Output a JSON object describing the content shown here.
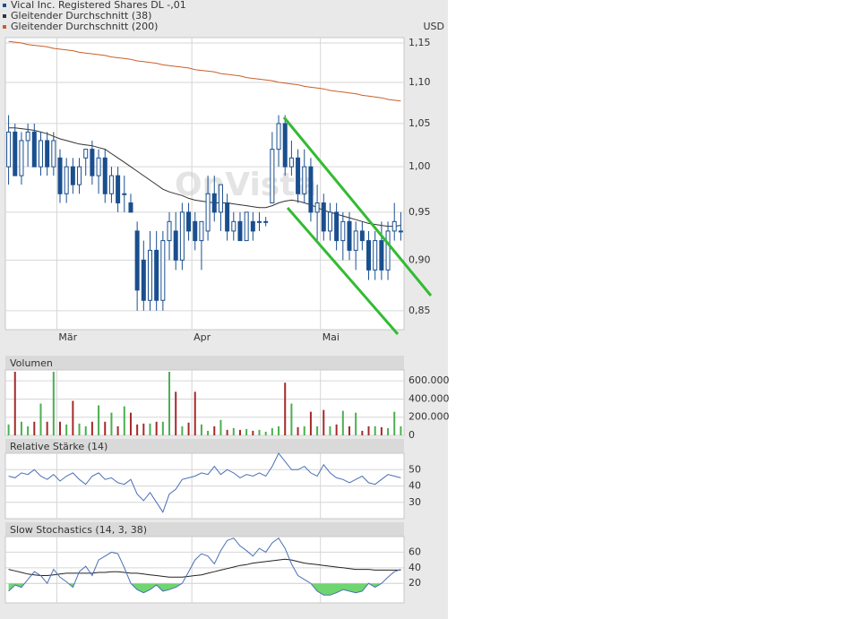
{
  "chart_data": [
    {
      "type": "candlestick",
      "name": "Vical Inc. Registered Shares DL -,01",
      "color": "#1a4f8f",
      "unit": "USD",
      "watermark": "OnVista",
      "log": true,
      "grid": true,
      "categories": [
        null,
        null,
        null,
        null,
        null,
        null,
        null,
        null,
        "Mär",
        null,
        null,
        null,
        null,
        null,
        null,
        null,
        null,
        null,
        null,
        null,
        null,
        null,
        null,
        null,
        null,
        null,
        null,
        null,
        null,
        "Apr",
        null,
        null,
        null,
        null,
        null,
        null,
        null,
        null,
        null,
        null,
        null,
        null,
        null,
        null,
        null,
        null,
        null,
        null,
        null,
        "Mai",
        null,
        null,
        null,
        null,
        null,
        null,
        null,
        null,
        null,
        null,
        null,
        null
      ],
      "open": [
        1.0,
        1.04,
        0.99,
        1.03,
        1.04,
        1.0,
        1.03,
        1.0,
        1.01,
        0.97,
        1.0,
        0.98,
        1.01,
        1.02,
        0.99,
        1.01,
        0.97,
        0.99,
        0.97,
        0.96,
        0.93,
        0.9,
        0.86,
        0.91,
        0.86,
        0.92,
        0.93,
        0.9,
        0.95,
        0.94,
        0.92,
        0.93,
        0.97,
        0.95,
        0.96,
        0.93,
        0.94,
        0.92,
        0.94,
        0.94,
        0.94,
        0.96,
        1.02,
        1.05,
        1.0,
        1.01,
        0.97,
        1.0,
        0.95,
        0.96,
        0.93,
        0.95,
        0.92,
        0.94,
        0.91,
        0.93,
        0.92,
        0.89,
        0.92,
        0.89,
        0.93,
        0.93
      ],
      "high": [
        1.06,
        1.05,
        1.04,
        1.05,
        1.05,
        1.04,
        1.04,
        1.04,
        1.02,
        1.01,
        1.01,
        1.01,
        1.02,
        1.03,
        1.02,
        1.02,
        1.0,
        1.0,
        0.99,
        0.97,
        0.94,
        0.92,
        0.93,
        0.93,
        0.93,
        0.95,
        0.95,
        0.96,
        0.96,
        0.95,
        0.94,
        0.99,
        0.99,
        0.98,
        0.97,
        0.95,
        0.95,
        0.95,
        0.95,
        0.95,
        0.945,
        1.04,
        1.06,
        1.06,
        1.03,
        1.02,
        1.02,
        1.01,
        0.98,
        0.97,
        0.96,
        0.96,
        0.95,
        0.95,
        0.94,
        0.94,
        0.93,
        0.93,
        0.94,
        0.94,
        0.96,
        0.95
      ],
      "low": [
        0.98,
        0.99,
        0.98,
        1.0,
        1.0,
        0.99,
        0.99,
        0.99,
        0.96,
        0.96,
        0.97,
        0.97,
        0.99,
        0.98,
        0.97,
        0.96,
        0.96,
        0.95,
        0.95,
        0.95,
        0.85,
        0.85,
        0.85,
        0.85,
        0.85,
        0.9,
        0.89,
        0.89,
        0.92,
        0.91,
        0.89,
        0.92,
        0.94,
        0.93,
        0.92,
        0.92,
        0.92,
        0.92,
        0.92,
        0.93,
        0.935,
        0.96,
        1.0,
        0.99,
        0.99,
        0.96,
        0.96,
        0.94,
        0.92,
        0.92,
        0.92,
        0.91,
        0.9,
        0.9,
        0.89,
        0.91,
        0.88,
        0.88,
        0.88,
        0.88,
        0.92,
        0.92
      ],
      "close": [
        1.04,
        0.99,
        1.03,
        1.04,
        1.0,
        1.03,
        1.0,
        1.03,
        0.97,
        1.0,
        0.98,
        1.0,
        1.02,
        0.99,
        1.01,
        0.97,
        0.99,
        0.96,
        0.97,
        0.95,
        0.87,
        0.86,
        0.91,
        0.86,
        0.92,
        0.94,
        0.9,
        0.95,
        0.93,
        0.92,
        0.94,
        0.97,
        0.95,
        0.98,
        0.93,
        0.94,
        0.92,
        0.95,
        0.93,
        0.94,
        0.94,
        1.02,
        1.05,
        1.0,
        1.01,
        0.97,
        1.0,
        0.95,
        0.96,
        0.93,
        0.95,
        0.92,
        0.94,
        0.91,
        0.93,
        0.92,
        0.89,
        0.92,
        0.89,
        0.93,
        0.94,
        0.93
      ],
      "series": [
        {
          "name": "Gleitender Durchschnitt (38)",
          "color": "#333333",
          "values": [
            1.045,
            1.045,
            1.044,
            1.043,
            1.042,
            1.04,
            1.038,
            1.035,
            1.032,
            1.03,
            1.028,
            1.026,
            1.025,
            1.024,
            1.022,
            1.02,
            1.015,
            1.01,
            1.005,
            1.0,
            0.995,
            0.99,
            0.985,
            0.98,
            0.975,
            0.972,
            0.97,
            0.968,
            0.965,
            0.963,
            0.962,
            0.961,
            0.96,
            0.96,
            0.96,
            0.959,
            0.958,
            0.957,
            0.956,
            0.955,
            0.955,
            0.957,
            0.96,
            0.962,
            0.963,
            0.962,
            0.96,
            0.958,
            0.955,
            0.952,
            0.95,
            0.948,
            0.946,
            0.944,
            0.942,
            0.94,
            0.938,
            0.937,
            0.936,
            0.935,
            0.935,
            0.936
          ]
        },
        {
          "name": "Gleitender Durchschnitt (200)",
          "color": "#c8602a",
          "values": [
            1.152,
            1.151,
            1.15,
            1.148,
            1.147,
            1.146,
            1.145,
            1.143,
            1.142,
            1.141,
            1.14,
            1.138,
            1.137,
            1.136,
            1.135,
            1.134,
            1.132,
            1.131,
            1.13,
            1.129,
            1.127,
            1.126,
            1.125,
            1.124,
            1.122,
            1.121,
            1.12,
            1.119,
            1.118,
            1.116,
            1.115,
            1.114,
            1.113,
            1.111,
            1.11,
            1.109,
            1.108,
            1.106,
            1.105,
            1.104,
            1.103,
            1.102,
            1.1,
            1.099,
            1.098,
            1.097,
            1.095,
            1.094,
            1.093,
            1.092,
            1.09,
            1.089,
            1.088,
            1.087,
            1.086,
            1.084,
            1.083,
            1.082,
            1.081,
            1.079,
            1.078,
            1.077
          ]
        }
      ],
      "ylim": [
        0.832,
        1.157
      ],
      "yticks": [
        {
          "value": 0.85,
          "label": "0,85"
        },
        {
          "value": 0.9,
          "label": "0,90"
        },
        {
          "value": 0.95,
          "label": "0,95"
        },
        {
          "value": 1.0,
          "label": "1,00"
        },
        {
          "value": 1.05,
          "label": "1,05"
        },
        {
          "value": 1.1,
          "label": "1,10"
        },
        {
          "value": 1.15,
          "label": "1,15"
        }
      ]
    },
    {
      "type": "bar",
      "title": "Volumen",
      "up_color": "#4caf50",
      "down_color": "#a52a2a",
      "values": [
        120000,
        700000,
        150000,
        100000,
        150000,
        350000,
        150000,
        700000,
        150000,
        120000,
        380000,
        130000,
        100000,
        150000,
        330000,
        150000,
        250000,
        100000,
        320000,
        250000,
        120000,
        130000,
        130000,
        150000,
        150000,
        700000,
        480000,
        100000,
        140000,
        480000,
        120000,
        50000,
        100000,
        170000,
        60000,
        80000,
        60000,
        70000,
        50000,
        60000,
        40000,
        80000,
        100000,
        580000,
        350000,
        90000,
        100000,
        260000,
        100000,
        280000,
        100000,
        120000,
        270000,
        100000,
        250000,
        50000,
        100000,
        100000,
        90000,
        80000,
        260000,
        100000
      ],
      "ylim": [
        0,
        720000
      ],
      "yticks": [
        0,
        {
          "value": 200000,
          "label": "200.000"
        },
        {
          "value": 400000,
          "label": "400.000"
        },
        {
          "value": 600000,
          "label": "600.000"
        }
      ]
    },
    {
      "type": "line",
      "title": "Relative Stärke (14)",
      "color": "#4a6fb5",
      "values": [
        46,
        45,
        48,
        47,
        50,
        46,
        44,
        47,
        43,
        46,
        48,
        44,
        41,
        46,
        48,
        44,
        45,
        42,
        41,
        44,
        35,
        31,
        36,
        30,
        24,
        35,
        38,
        44,
        45,
        46,
        48,
        47,
        52,
        47,
        50,
        48,
        45,
        47,
        46,
        48,
        46,
        52,
        60,
        55,
        50,
        50,
        52,
        48,
        46,
        53,
        48,
        45,
        44,
        42,
        44,
        46,
        42,
        41,
        44,
        47,
        46,
        45
      ],
      "ylim": [
        20,
        60
      ],
      "yticks": [
        30,
        40,
        50
      ]
    },
    {
      "type": "line",
      "title": "Slow Stochastics (14, 3, 38)",
      "fill_color": "#6fd66f",
      "series": [
        {
          "color": "#4a6fb5",
          "values": [
            10,
            18,
            15,
            25,
            35,
            30,
            20,
            38,
            28,
            22,
            15,
            35,
            42,
            30,
            50,
            55,
            60,
            58,
            40,
            20,
            12,
            8,
            12,
            18,
            10,
            12,
            15,
            20,
            35,
            50,
            58,
            55,
            45,
            62,
            75,
            78,
            68,
            62,
            55,
            65,
            60,
            72,
            78,
            65,
            45,
            30,
            25,
            20,
            10,
            5,
            5,
            8,
            12,
            10,
            8,
            10,
            20,
            15,
            20,
            28,
            35,
            38
          ]
        },
        {
          "color": "#222222",
          "values": [
            38,
            36,
            34,
            32,
            31,
            30,
            30,
            31,
            32,
            33,
            33,
            33,
            33,
            33,
            34,
            34,
            35,
            35,
            34,
            33,
            33,
            32,
            31,
            30,
            29,
            28,
            28,
            28,
            29,
            30,
            31,
            33,
            35,
            37,
            39,
            41,
            43,
            44,
            46,
            47,
            48,
            49,
            50,
            51,
            50,
            48,
            46,
            45,
            44,
            43,
            42,
            41,
            40,
            39,
            38,
            38,
            38,
            37,
            37,
            37,
            37,
            37
          ]
        }
      ],
      "ylim": [
        -5,
        80
      ],
      "yticks": [
        20,
        40,
        60
      ]
    }
  ]
}
